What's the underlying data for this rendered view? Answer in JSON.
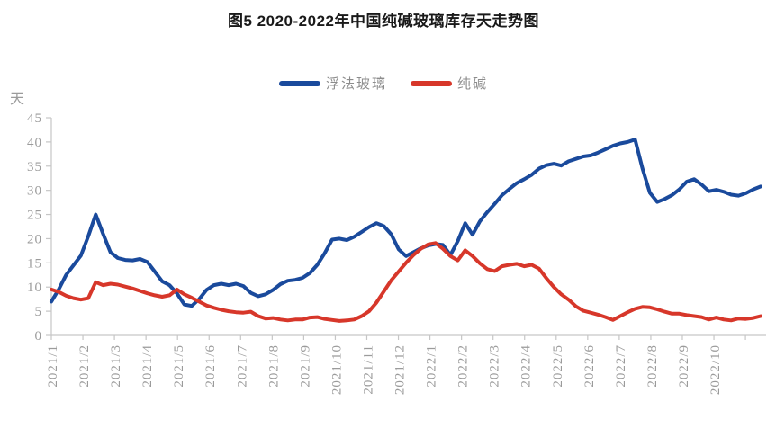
{
  "title": "图5 2020-2022年中国纯碱玻璃库存天走势图",
  "chart_data": {
    "type": "line",
    "title": "图5 2020-2022年中国纯碱玻璃库存天走势图",
    "xlabel": "",
    "ylabel": "天",
    "ylim": [
      0,
      45
    ],
    "ytick_step": 5,
    "grid": false,
    "legend_position": "top-center",
    "axis_color": "#c6c6c6",
    "tick_label_color": "#9b9b9b",
    "x_tick_labels": [
      "2021/1",
      "2021/2",
      "2021/3",
      "2021/4",
      "2021/5",
      "2021/6",
      "2021/7",
      "2021/8",
      "2021/9",
      "2021/10",
      "2021/11",
      "2021/12",
      "2022/1",
      "2022/2",
      "2022/3",
      "2022/4",
      "2022/5",
      "2022/6",
      "2022/7",
      "2022/8",
      "2022/9",
      "2022/10"
    ],
    "sampling": "weekly",
    "points_per_month": 4.27,
    "series": [
      {
        "name": "浮法玻璃",
        "color": "#1a4a9c",
        "values": [
          7.0,
          9.5,
          12.5,
          14.5,
          16.5,
          20.5,
          25.0,
          21.0,
          17.2,
          16.0,
          15.6,
          15.5,
          15.8,
          15.2,
          13.2,
          11.2,
          10.4,
          8.7,
          6.4,
          6.1,
          7.5,
          9.4,
          10.4,
          10.7,
          10.4,
          10.7,
          10.2,
          8.8,
          8.1,
          8.5,
          9.4,
          10.6,
          11.3,
          11.5,
          11.9,
          12.9,
          14.6,
          17.0,
          19.8,
          20.0,
          19.7,
          20.4,
          21.4,
          22.4,
          23.2,
          22.6,
          20.9,
          17.8,
          16.4,
          17.2,
          18.0,
          18.6,
          18.9,
          18.7,
          16.6,
          19.5,
          23.2,
          20.8,
          23.6,
          25.5,
          27.2,
          29.0,
          30.3,
          31.5,
          32.3,
          33.2,
          34.5,
          35.2,
          35.5,
          35.1,
          36.0,
          36.5,
          37.0,
          37.2,
          37.8,
          38.5,
          39.2,
          39.7,
          40.0,
          40.5,
          34.5,
          29.5,
          27.6,
          28.2,
          29.0,
          30.2,
          31.8,
          32.3,
          31.2,
          29.8,
          30.1,
          29.7,
          29.1,
          28.9,
          29.4,
          30.2,
          30.8
        ]
      },
      {
        "name": "纯碱",
        "color": "#d7372a",
        "values": [
          9.5,
          9.0,
          8.2,
          7.7,
          7.4,
          7.7,
          11.0,
          10.4,
          10.7,
          10.5,
          10.1,
          9.7,
          9.2,
          8.7,
          8.3,
          8.0,
          8.3,
          9.5,
          8.5,
          7.8,
          7.0,
          6.2,
          5.7,
          5.3,
          5.0,
          4.8,
          4.7,
          4.9,
          4.0,
          3.5,
          3.6,
          3.3,
          3.1,
          3.3,
          3.3,
          3.7,
          3.8,
          3.4,
          3.2,
          3.0,
          3.1,
          3.3,
          4.0,
          5.0,
          6.8,
          9.1,
          11.4,
          13.2,
          15.0,
          16.6,
          17.9,
          18.8,
          19.1,
          17.9,
          16.4,
          15.5,
          17.6,
          16.4,
          14.9,
          13.7,
          13.3,
          14.3,
          14.6,
          14.8,
          14.3,
          14.6,
          13.8,
          11.8,
          10.0,
          8.5,
          7.4,
          6.0,
          5.1,
          4.7,
          4.3,
          3.8,
          3.2,
          4.0,
          4.8,
          5.5,
          5.9,
          5.8,
          5.4,
          4.9,
          4.5,
          4.5,
          4.2,
          4.0,
          3.8,
          3.3,
          3.7,
          3.3,
          3.1,
          3.5,
          3.4,
          3.6,
          4.0
        ]
      }
    ]
  }
}
